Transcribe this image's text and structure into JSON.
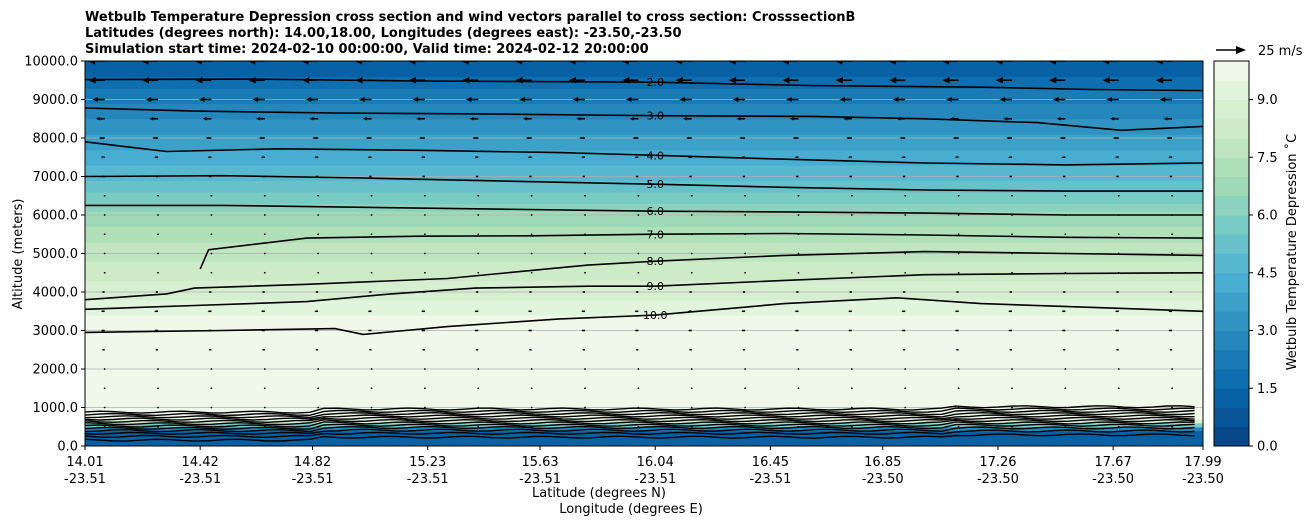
{
  "chart_data": {
    "type": "heatmap",
    "title_lines": [
      "Wetbulb Temperature Depression cross section and wind vectors parallel to cross section: CrosssectionB",
      "Latitudes (degrees north): 14.00,18.00, Longitudes (degrees east): -23.50,-23.50",
      "Simulation start time: 2024-02-10 00:00:00, Valid time: 2024-02-12 20:00:00"
    ],
    "xlabel": "Latitude (degrees N)",
    "xlabel2": "Longitude (degrees E)",
    "ylabel": "Altitude (meters)",
    "colorbar_label": "Wetbulb Temperature Depression ˚C",
    "x_range": [
      14.01,
      17.99
    ],
    "ylim": [
      0,
      10000
    ],
    "x_ticks": [
      {
        "lat": "14.01",
        "lon": "-23.51",
        "value": 14.01
      },
      {
        "lat": "14.42",
        "lon": "-23.51",
        "value": 14.42
      },
      {
        "lat": "14.82",
        "lon": "-23.51",
        "value": 14.82
      },
      {
        "lat": "15.23",
        "lon": "-23.51",
        "value": 15.23
      },
      {
        "lat": "15.63",
        "lon": "-23.51",
        "value": 15.63
      },
      {
        "lat": "16.04",
        "lon": "-23.51",
        "value": 16.04
      },
      {
        "lat": "16.45",
        "lon": "-23.51",
        "value": 16.45
      },
      {
        "lat": "16.85",
        "lon": "-23.50",
        "value": 16.85
      },
      {
        "lat": "17.26",
        "lon": "-23.50",
        "value": 17.26
      },
      {
        "lat": "17.67",
        "lon": "-23.50",
        "value": 17.67
      },
      {
        "lat": "17.99",
        "lon": "-23.50",
        "value": 17.99
      }
    ],
    "y_ticks": [
      {
        "label": "0.0",
        "value": 0
      },
      {
        "label": "1000.0",
        "value": 1000
      },
      {
        "label": "2000.0",
        "value": 2000
      },
      {
        "label": "3000.0",
        "value": 3000
      },
      {
        "label": "4000.0",
        "value": 4000
      },
      {
        "label": "5000.0",
        "value": 5000
      },
      {
        "label": "6000.0",
        "value": 6000
      },
      {
        "label": "7000.0",
        "value": 7000
      },
      {
        "label": "8000.0",
        "value": 8000
      },
      {
        "label": "9000.0",
        "value": 9000
      },
      {
        "label": "10000.0",
        "value": 10000
      }
    ],
    "colorbar": {
      "min": 0,
      "max": 10,
      "levels": 20,
      "ticks": [
        {
          "label": "0.0",
          "value": 0
        },
        {
          "label": "1.5",
          "value": 1.5
        },
        {
          "label": "3.0",
          "value": 3.0
        },
        {
          "label": "4.5",
          "value": 4.5
        },
        {
          "label": "6.0",
          "value": 6.0
        },
        {
          "label": "7.5",
          "value": 7.5
        },
        {
          "label": "9.0",
          "value": 9.0
        }
      ],
      "colormap": "GnBu_r"
    },
    "quiver_key": {
      "label": "25 m/s",
      "speed": 25
    },
    "grid": "horizontal",
    "depression_profile": {
      "alt_m": [
        0,
        400,
        700,
        1000,
        2000,
        2800,
        3200,
        3500,
        4000,
        4500,
        5000,
        5500,
        6000,
        6500,
        7000,
        7500,
        8000,
        8500,
        9000,
        9500,
        10000
      ],
      "value_C": [
        1.0,
        1.0,
        10.0,
        10.0,
        10.0,
        10.0,
        9.9,
        9.4,
        8.8,
        8.3,
        7.8,
        7.3,
        6.6,
        5.7,
        4.9,
        4.3,
        3.6,
        3.0,
        2.4,
        1.7,
        1.0
      ]
    },
    "contours": [
      {
        "label": "2.0",
        "lat": [
          14.01,
          14.6,
          15.2,
          15.8,
          16.04,
          16.6,
          17.2,
          17.6,
          17.99
        ],
        "alt_m": [
          9520,
          9530,
          9480,
          9460,
          9450,
          9360,
          9320,
          9260,
          9230
        ]
      },
      {
        "label": "3.0",
        "lat": [
          14.01,
          14.4,
          14.9,
          15.5,
          16.04,
          16.6,
          17.0,
          17.4,
          17.7,
          17.99
        ],
        "alt_m": [
          8780,
          8700,
          8650,
          8620,
          8580,
          8560,
          8500,
          8400,
          8200,
          8300
        ]
      },
      {
        "label": "4.0",
        "lat": [
          14.01,
          14.3,
          14.7,
          15.2,
          15.7,
          16.04,
          16.5,
          17.0,
          17.5,
          17.99
        ],
        "alt_m": [
          7900,
          7650,
          7720,
          7680,
          7620,
          7550,
          7450,
          7350,
          7300,
          7350
        ]
      },
      {
        "label": "5.0",
        "lat": [
          14.01,
          14.5,
          15.0,
          15.5,
          16.04,
          16.5,
          17.0,
          17.5,
          17.99
        ],
        "alt_m": [
          7000,
          7020,
          6960,
          6880,
          6800,
          6720,
          6650,
          6620,
          6620
        ]
      },
      {
        "label": "6.0",
        "lat": [
          14.01,
          14.5,
          15.0,
          15.5,
          16.04,
          16.5,
          17.0,
          17.5,
          17.99
        ],
        "alt_m": [
          6250,
          6250,
          6200,
          6150,
          6100,
          6080,
          6050,
          6000,
          6000
        ]
      },
      {
        "label": "7.0",
        "lat": [
          14.42,
          14.45,
          14.8,
          15.2,
          15.6,
          16.04,
          16.5,
          17.0,
          17.5,
          17.99
        ],
        "alt_m": [
          4600,
          5100,
          5400,
          5450,
          5460,
          5500,
          5520,
          5480,
          5420,
          5400
        ]
      },
      {
        "label": "8.0",
        "lat": [
          14.01,
          14.3,
          14.4,
          14.8,
          15.3,
          15.8,
          16.04,
          16.5,
          17.0,
          17.5,
          17.99
        ],
        "alt_m": [
          3800,
          3950,
          4100,
          4200,
          4350,
          4700,
          4800,
          4950,
          5050,
          5000,
          4950
        ]
      },
      {
        "label": "9.0",
        "lat": [
          14.01,
          14.4,
          14.8,
          15.1,
          15.4,
          15.8,
          16.04,
          16.5,
          17.0,
          17.5,
          17.99
        ],
        "alt_m": [
          3550,
          3650,
          3750,
          3950,
          4100,
          4150,
          4150,
          4300,
          4450,
          4480,
          4500
        ]
      },
      {
        "label": "10.0",
        "lat": [
          14.01,
          14.5,
          14.9,
          15.0,
          15.3,
          15.7,
          16.04,
          16.5,
          16.9,
          17.2,
          17.6,
          17.99
        ],
        "alt_m": [
          2950,
          3000,
          3050,
          2900,
          3100,
          3300,
          3400,
          3700,
          3850,
          3700,
          3600,
          3500
        ]
      }
    ],
    "contour_labels_shown": [
      "1.0",
      "1.0",
      "2.0",
      "3.0",
      "4.0",
      "5.0",
      "6.0",
      "7.0",
      "8.0",
      "9.0",
      "10.0",
      "10.0",
      "0.0",
      "0.0",
      "0.0",
      "0.0",
      "2.0",
      "3.0",
      "4.0"
    ],
    "wind": {
      "note": "horizontal wind component parallel to section (m/s, negative = toward lower latitude)",
      "alt_m": [
        500,
        1000,
        1500,
        2000,
        2500,
        3000,
        3500,
        4000,
        4500,
        5000,
        5500,
        6000,
        6500,
        7000,
        7500,
        8000,
        8500,
        9000,
        9500,
        10000
      ],
      "u_ms": [
        0,
        -1,
        -1,
        -2,
        -3,
        -4,
        -4,
        -3,
        -2,
        -1,
        -1,
        -1,
        -2,
        -3,
        -4,
        -6,
        -9,
        -13,
        -17,
        -18
      ]
    }
  }
}
